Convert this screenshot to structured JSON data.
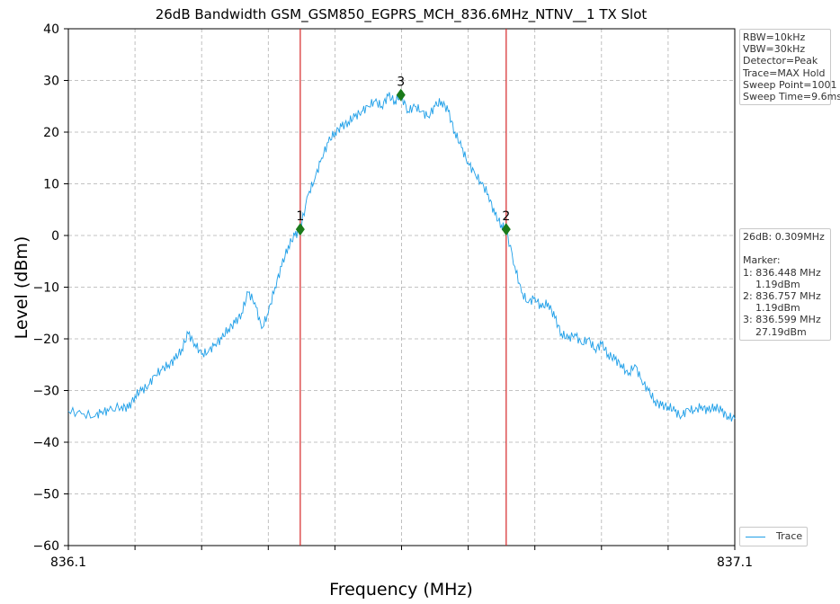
{
  "chart_data": {
    "type": "line",
    "title": "26dB Bandwidth GSM_GSM850_EGPRS_MCH_836.6MHz_NTNV__1 TX Slot",
    "xlabel": "Frequency (MHz)",
    "ylabel": "Level (dBm)",
    "xlim": [
      836.1,
      837.1
    ],
    "ylim": [
      -60,
      40
    ],
    "x_tick_labels": [
      "836.1",
      "837.1"
    ],
    "y_ticks": [
      40,
      30,
      20,
      10,
      0,
      -10,
      -20,
      -30,
      -40,
      -50,
      -60
    ],
    "grid": true,
    "grid_style": "dashed",
    "series": [
      {
        "name": "Trace",
        "color": "#1f9fe8",
        "x": [
          836.1,
          836.12,
          836.14,
          836.15,
          836.16,
          836.18,
          836.19,
          836.2,
          836.21,
          836.22,
          836.23,
          836.24,
          836.25,
          836.26,
          836.27,
          836.28,
          836.29,
          836.3,
          836.31,
          836.32,
          836.33,
          836.34,
          836.35,
          836.36,
          836.37,
          836.38,
          836.39,
          836.4,
          836.41,
          836.42,
          836.43,
          836.44,
          836.448,
          836.46,
          836.47,
          836.48,
          836.49,
          836.5,
          836.51,
          836.52,
          836.53,
          836.54,
          836.55,
          836.56,
          836.57,
          836.58,
          836.59,
          836.599,
          836.61,
          836.62,
          836.63,
          836.64,
          836.65,
          836.66,
          836.67,
          836.68,
          836.69,
          836.7,
          836.71,
          836.72,
          836.73,
          836.74,
          836.75,
          836.757,
          836.77,
          836.78,
          836.79,
          836.8,
          836.81,
          836.82,
          836.83,
          836.84,
          836.85,
          836.86,
          836.87,
          836.88,
          836.89,
          836.9,
          836.91,
          836.92,
          836.93,
          836.94,
          836.95,
          836.96,
          836.97,
          836.98,
          836.99,
          837.0,
          837.01,
          837.02,
          837.03,
          837.04,
          837.05,
          837.06,
          837.07,
          837.08,
          837.09,
          837.1
        ],
        "y": [
          -34,
          -34.5,
          -35,
          -34,
          -34,
          -33,
          -33.5,
          -31,
          -30,
          -29,
          -27,
          -26,
          -25,
          -24,
          -22,
          -19,
          -21,
          -23,
          -22.5,
          -21,
          -20,
          -18,
          -17,
          -15,
          -11,
          -13,
          -18,
          -15,
          -10,
          -6,
          -2,
          0,
          1.19,
          8,
          11,
          15,
          18,
          20,
          21,
          22,
          23,
          24,
          25,
          26,
          25,
          27,
          26,
          27.19,
          24,
          25,
          24,
          23,
          25,
          26,
          24,
          20,
          17,
          14,
          12,
          10,
          8,
          4,
          2,
          1.19,
          -6,
          -11,
          -13,
          -12,
          -14,
          -13,
          -16,
          -19,
          -20,
          -19,
          -21,
          -20,
          -22,
          -21,
          -23,
          -24,
          -25,
          -27,
          -25,
          -28,
          -30,
          -32,
          -33,
          -33,
          -34,
          -35,
          -33.5,
          -34,
          -33,
          -34,
          -33,
          -34,
          -35,
          -35.5
        ]
      }
    ],
    "markers": [
      {
        "label": "1",
        "x": 836.448,
        "y": 1.19,
        "color": "#1a7a1a"
      },
      {
        "label": "2",
        "x": 836.757,
        "y": 1.19,
        "color": "#1a7a1a"
      },
      {
        "label": "3",
        "x": 836.599,
        "y": 27.19,
        "color": "#1a7a1a"
      }
    ],
    "vlines": [
      {
        "x": 836.448,
        "color": "#d62728"
      },
      {
        "x": 836.757,
        "color": "#d62728"
      }
    ],
    "legend": {
      "position": "bottom-right",
      "entries": [
        "Trace"
      ]
    }
  },
  "settings_box": [
    "RBW=10kHz",
    "VBW=30kHz",
    "Detector=Peak",
    "Trace=MAX Hold",
    "Sweep Point=1001",
    "Sweep Time=9.6ms"
  ],
  "bandwidth_box": [
    "26dB: 0.309MHz",
    "",
    "Marker:",
    "1: 836.448 MHz",
    "    1.19dBm",
    "2: 836.757 MHz",
    "    1.19dBm",
    "3: 836.599 MHz",
    "    27.19dBm"
  ]
}
